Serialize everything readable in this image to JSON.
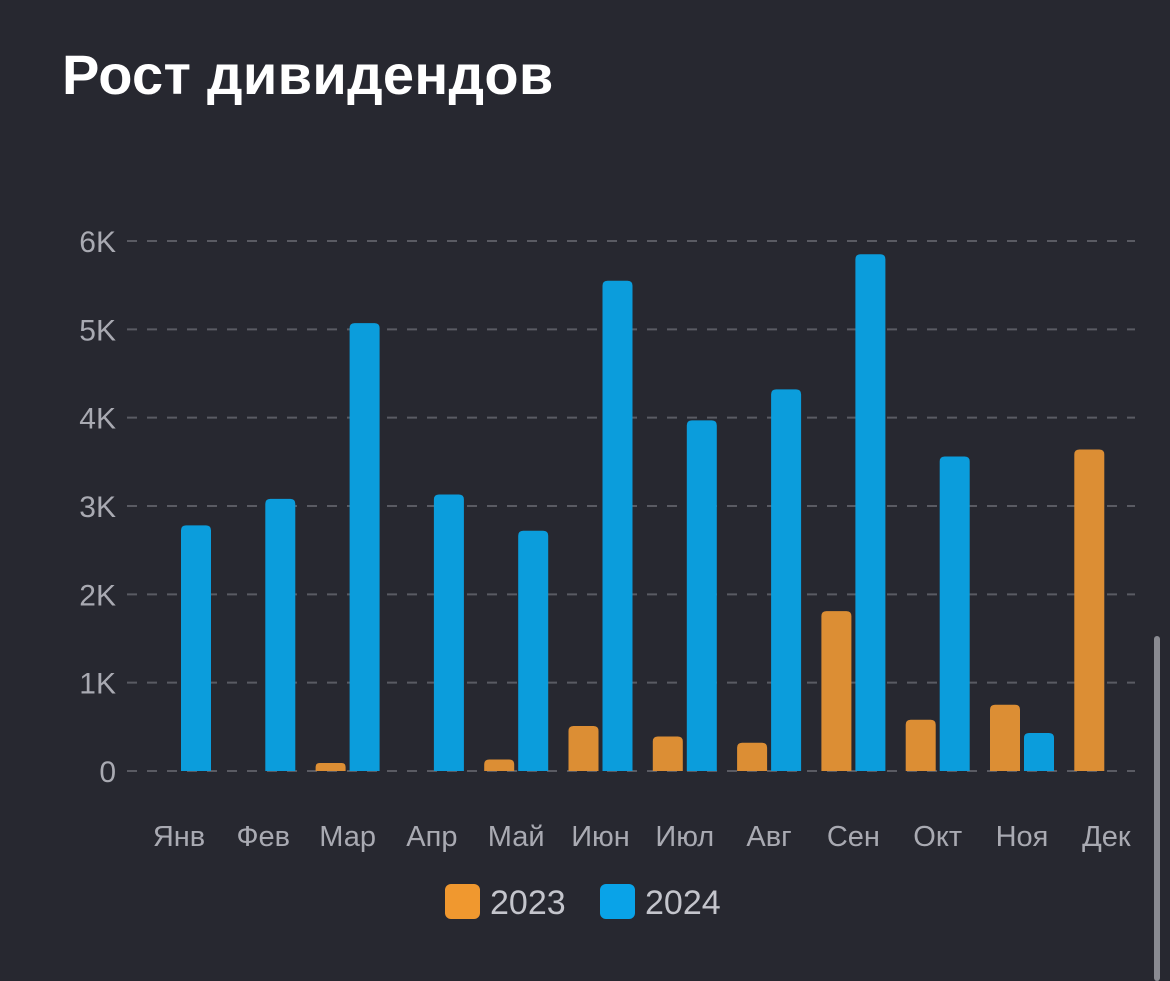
{
  "title": "Рост дивидендов",
  "colors": {
    "background": "#272830",
    "grid": "#5a5b63",
    "series_2023": "#f0982f",
    "series_2024": "#09a3e8",
    "bar_2023": "#dc8e34",
    "bar_2024": "#0b9ddc"
  },
  "chart_data": {
    "type": "bar",
    "title": "Рост дивидендов",
    "xlabel": "",
    "ylabel": "",
    "categories": [
      "Янв",
      "Фев",
      "Мар",
      "Апр",
      "Май",
      "Июн",
      "Июл",
      "Авг",
      "Сен",
      "Окт",
      "Ноя",
      "Дек"
    ],
    "series": [
      {
        "name": "2023",
        "values": [
          0,
          0,
          90,
          0,
          130,
          510,
          390,
          320,
          1810,
          580,
          750,
          3640
        ]
      },
      {
        "name": "2024",
        "values": [
          2780,
          3080,
          5070,
          3130,
          2720,
          5550,
          3970,
          4320,
          5850,
          3560,
          430,
          0
        ]
      }
    ],
    "ylim": [
      0,
      6000
    ],
    "yticks": [
      0,
      1000,
      2000,
      3000,
      4000,
      5000,
      6000
    ],
    "ytick_labels": [
      "0",
      "1K",
      "2K",
      "3K",
      "4K",
      "5K",
      "6K"
    ],
    "grid": true,
    "grid_style": "dashed",
    "legend": {
      "placement": "bottom-center",
      "entries": [
        "2023",
        "2024"
      ]
    }
  },
  "scrollbar": {
    "visible": true
  }
}
